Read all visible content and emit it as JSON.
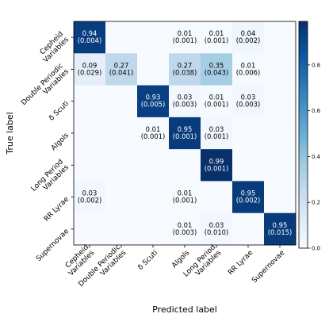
{
  "chart_data": {
    "type": "heatmap",
    "title": "",
    "xlabel": "Predicted label",
    "ylabel": "True label",
    "row_labels": [
      [
        "Cepheid",
        "Variables"
      ],
      [
        "Double Periodic",
        "Variables"
      ],
      [
        "δ Scuti"
      ],
      [
        "Algols"
      ],
      [
        "Long Period",
        "Variables"
      ],
      [
        "RR Lyrae"
      ],
      [
        "Supernovae"
      ]
    ],
    "col_labels": [
      [
        "Cepheid",
        "Variables"
      ],
      [
        "Double Periodic",
        "Variables"
      ],
      [
        "δ Scuti"
      ],
      [
        "Algols"
      ],
      [
        "Long Period",
        "Variables"
      ],
      [
        "RR Lyrae"
      ],
      [
        "Supernovae"
      ]
    ],
    "values": [
      [
        0.94,
        0.0,
        0.0,
        0.01,
        0.01,
        0.04,
        0.0
      ],
      [
        0.09,
        0.27,
        0.0,
        0.27,
        0.35,
        0.01,
        0.0
      ],
      [
        0.0,
        0.0,
        0.93,
        0.03,
        0.01,
        0.03,
        0.0
      ],
      [
        0.0,
        0.0,
        0.01,
        0.95,
        0.03,
        0.0,
        0.0
      ],
      [
        0.0,
        0.0,
        0.0,
        0.0,
        0.99,
        0.0,
        0.0
      ],
      [
        0.03,
        0.0,
        0.0,
        0.01,
        0.0,
        0.95,
        0.0
      ],
      [
        0.0,
        0.0,
        0.0,
        0.01,
        0.03,
        0.0,
        0.95
      ]
    ],
    "cell_text": [
      [
        [
          "0.94",
          "(0.004)"
        ],
        null,
        null,
        [
          "0.01",
          "(0.001)"
        ],
        [
          "0.01",
          "(0.001)"
        ],
        [
          "0.04",
          "(0.002)"
        ],
        null
      ],
      [
        [
          "0.09",
          "(0.029)"
        ],
        [
          "0.27",
          "(0.041)"
        ],
        null,
        [
          "0.27",
          "(0.038)"
        ],
        [
          "0.35",
          "(0.043)"
        ],
        [
          "0.01",
          "(0.006)"
        ],
        null
      ],
      [
        null,
        null,
        [
          "0.93",
          "(0.005)"
        ],
        [
          "0.03",
          "(0.003)"
        ],
        [
          "0.01",
          "(0.001)"
        ],
        [
          "0.03",
          "(0.003)"
        ],
        null
      ],
      [
        null,
        null,
        [
          "0.01",
          "(0.001)"
        ],
        [
          "0.95",
          "(0.001)"
        ],
        [
          "0.03",
          "(0.001)"
        ],
        null,
        null
      ],
      [
        null,
        null,
        null,
        null,
        [
          "0.99",
          "(0.001)"
        ],
        null,
        null
      ],
      [
        [
          "0.03",
          "(0.002)"
        ],
        null,
        null,
        [
          "0.01",
          "(0.001)"
        ],
        null,
        [
          "0.95",
          "(0.002)"
        ],
        null
      ],
      [
        null,
        null,
        null,
        [
          "0.01",
          "(0.003)"
        ],
        [
          "0.03",
          "(0.010)"
        ],
        null,
        [
          "0.95",
          "(0.015)"
        ]
      ]
    ],
    "colormap": "Blues",
    "colormap_stops": [
      "#f7fbff",
      "#deebf7",
      "#c6dbef",
      "#9ecae1",
      "#6baed6",
      "#4292c6",
      "#2171b5",
      "#08519c",
      "#08306b"
    ],
    "colorbar": {
      "range": [
        0,
        1
      ],
      "ticks": [
        "0.0",
        "0.2",
        "0.4",
        "0.6",
        "0.8"
      ],
      "tick_values": [
        0.0,
        0.2,
        0.4,
        0.6,
        0.8
      ],
      "max_value": 0.99
    },
    "grid": false,
    "legend": "colorbar-right"
  }
}
